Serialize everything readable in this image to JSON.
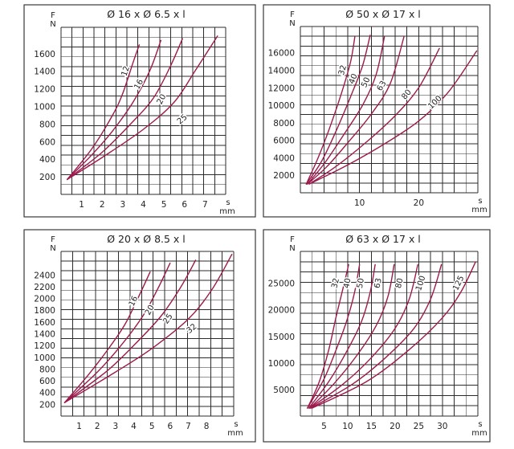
{
  "chart_data": [
    {
      "id": "p1",
      "type": "line",
      "title": "Ø 16 x Ø 6.5 x l",
      "ylabel": "F",
      "yunit": "N",
      "xlabel": "s",
      "xunit": "mm",
      "xlim": [
        0,
        8
      ],
      "ylim": [
        0,
        1900
      ],
      "x_ticks": [
        1,
        2,
        3,
        4,
        5,
        6,
        7
      ],
      "y_ticks": [
        200,
        400,
        600,
        800,
        1000,
        1200,
        1400,
        1600
      ],
      "grid_x_count": 15,
      "grid_y_count": 17,
      "series": [
        {
          "name": "12",
          "points": [
            [
              0.3,
              170
            ],
            [
              1.5,
              520
            ],
            [
              2.5,
              900
            ],
            [
              3.0,
              1150
            ],
            [
              3.5,
              1500
            ],
            [
              3.8,
              1700
            ]
          ],
          "label_at": [
            3.15,
            1400
          ]
        },
        {
          "name": "16",
          "points": [
            [
              0.3,
              170
            ],
            [
              1.5,
              450
            ],
            [
              2.5,
              720
            ],
            [
              3.5,
              1050
            ],
            [
              4.3,
              1400
            ],
            [
              4.85,
              1750
            ]
          ],
          "label_at": [
            3.8,
            1250
          ]
        },
        {
          "name": "20",
          "points": [
            [
              0.3,
              170
            ],
            [
              2.0,
              480
            ],
            [
              3.5,
              830
            ],
            [
              4.5,
              1100
            ],
            [
              5.3,
              1450
            ],
            [
              5.9,
              1770
            ]
          ],
          "label_at": [
            4.9,
            1080
          ]
        },
        {
          "name": "25",
          "points": [
            [
              0.3,
              170
            ],
            [
              2.0,
              420
            ],
            [
              4.0,
              740
            ],
            [
              5.5,
              1050
            ],
            [
              6.5,
              1400
            ],
            [
              7.6,
              1800
            ]
          ],
          "label_at": [
            5.9,
            850
          ]
        }
      ]
    },
    {
      "id": "p2",
      "type": "line",
      "title": "Ø 50 x Ø 17 x l",
      "ylabel": "F",
      "yunit": "N",
      "xlabel": "s",
      "xunit": "mm",
      "xlim": [
        0,
        30
      ],
      "ylim": [
        0,
        19000
      ],
      "x_ticks": [
        10,
        20
      ],
      "y_ticks": [
        2000,
        4000,
        6000,
        8000,
        10000,
        12000,
        14000,
        16000
      ],
      "grid_x_count": 15,
      "grid_y_count": 17,
      "series": [
        {
          "name": "32",
          "points": [
            [
              1.0,
              1000
            ],
            [
              3.0,
              4000
            ],
            [
              5.0,
              7500
            ],
            [
              7.0,
              11500
            ],
            [
              8.5,
              15000
            ],
            [
              9.2,
              17800
            ]
          ],
          "label_at": [
            7.2,
            14000
          ]
        },
        {
          "name": "40",
          "points": [
            [
              1.0,
              1000
            ],
            [
              3.5,
              3500
            ],
            [
              6.0,
              7000
            ],
            [
              8.5,
              11000
            ],
            [
              10.5,
              14500
            ],
            [
              11.8,
              18000
            ]
          ],
          "label_at": [
            9.0,
            13000
          ]
        },
        {
          "name": "50",
          "points": [
            [
              1.2,
              1000
            ],
            [
              4.0,
              3300
            ],
            [
              7.0,
              6300
            ],
            [
              10.5,
              10000
            ],
            [
              12.8,
              13500
            ],
            [
              14.2,
              17800
            ]
          ],
          "label_at": [
            11.1,
            12600
          ]
        },
        {
          "name": "63",
          "points": [
            [
              1.2,
              1000
            ],
            [
              4.5,
              3000
            ],
            [
              8.0,
              5700
            ],
            [
              12.0,
              9000
            ],
            [
              15.2,
              12500
            ],
            [
              17.5,
              17800
            ]
          ],
          "label_at": [
            13.8,
            12200
          ]
        },
        {
          "name": "80",
          "points": [
            [
              1.5,
              1000
            ],
            [
              6.0,
              3000
            ],
            [
              11.0,
              5700
            ],
            [
              16.0,
              8800
            ],
            [
              20.0,
              12000
            ],
            [
              23.5,
              16500
            ]
          ],
          "label_at": [
            18.0,
            11200
          ]
        },
        {
          "name": "100",
          "points": [
            [
              1.5,
              1000
            ],
            [
              7.5,
              3000
            ],
            [
              14.0,
              5500
            ],
            [
              20.0,
              8200
            ],
            [
              25.0,
              11500
            ],
            [
              29.8,
              16200
            ]
          ],
          "label_at": [
            22.8,
            10300
          ]
        }
      ]
    },
    {
      "id": "p3",
      "type": "line",
      "title": "Ø 20 x Ø 8.5 x l",
      "ylabel": "F",
      "yunit": "N",
      "xlabel": "s",
      "xunit": "mm",
      "xlim": [
        0,
        9.5
      ],
      "ylim": [
        0,
        2800
      ],
      "x_ticks": [
        1,
        2,
        3,
        4,
        5,
        6,
        7,
        8
      ],
      "y_ticks": [
        200,
        400,
        600,
        800,
        1000,
        1200,
        1400,
        1600,
        1800,
        2000,
        2200,
        2400
      ],
      "grid_x_count": 15,
      "grid_y_count": 17,
      "series": [
        {
          "name": "16",
          "points": [
            [
              0.2,
              230
            ],
            [
              1.5,
              700
            ],
            [
              2.5,
              1100
            ],
            [
              3.5,
              1550
            ],
            [
              4.3,
              2050
            ],
            [
              4.9,
              2450
            ]
          ],
          "label_at": [
            4.0,
            1950
          ]
        },
        {
          "name": "20",
          "points": [
            [
              0.2,
              230
            ],
            [
              2.0,
              750
            ],
            [
              3.3,
              1200
            ],
            [
              4.5,
              1700
            ],
            [
              5.3,
              2150
            ],
            [
              6.0,
              2600
            ]
          ],
          "label_at": [
            4.9,
            1800
          ]
        },
        {
          "name": "25",
          "points": [
            [
              0.2,
              230
            ],
            [
              2.5,
              760
            ],
            [
              4.0,
              1200
            ],
            [
              5.5,
              1700
            ],
            [
              6.6,
              2200
            ],
            [
              7.4,
              2650
            ]
          ],
          "label_at": [
            5.9,
            1650
          ]
        },
        {
          "name": "32",
          "points": [
            [
              0.2,
              230
            ],
            [
              3.0,
              750
            ],
            [
              5.0,
              1150
            ],
            [
              7.0,
              1650
            ],
            [
              8.3,
              2150
            ],
            [
              9.4,
              2750
            ]
          ],
          "label_at": [
            7.2,
            1480
          ]
        }
      ]
    },
    {
      "id": "p4",
      "type": "line",
      "title": "Ø 63 x Ø 17 x l",
      "ylabel": "F",
      "yunit": "N",
      "xlabel": "s",
      "xunit": "mm",
      "xlim": [
        0,
        37.5
      ],
      "ylim": [
        0,
        31000
      ],
      "x_ticks": [
        5,
        10,
        15,
        20,
        25,
        30
      ],
      "y_ticks": [
        5000,
        10000,
        15000,
        20000,
        25000
      ],
      "grid_x_count": 15,
      "grid_y_count": 16,
      "series": [
        {
          "name": "32",
          "points": [
            [
              1.5,
              1500
            ],
            [
              4.0,
              6500
            ],
            [
              6.0,
              12500
            ],
            [
              7.5,
              18500
            ],
            [
              9.0,
              24000
            ],
            [
              10.2,
              28500
            ]
          ],
          "label_at": [
            7.5,
            25000
          ]
        },
        {
          "name": "40",
          "points": [
            [
              1.5,
              1500
            ],
            [
              5.0,
              7000
            ],
            [
              8.0,
              13500
            ],
            [
              10.0,
              18500
            ],
            [
              11.5,
              23500
            ],
            [
              12.5,
              28500
            ]
          ],
          "label_at": [
            10.0,
            25000
          ]
        },
        {
          "name": "50",
          "points": [
            [
              1.8,
              1500
            ],
            [
              6.0,
              6500
            ],
            [
              10.0,
              12500
            ],
            [
              13.0,
              18000
            ],
            [
              14.8,
              23500
            ],
            [
              15.8,
              28500
            ]
          ],
          "label_at": [
            12.8,
            25000
          ]
        },
        {
          "name": "63",
          "points": [
            [
              2.0,
              1500
            ],
            [
              7.0,
              6000
            ],
            [
              12.0,
              11500
            ],
            [
              16.0,
              17000
            ],
            [
              18.5,
              22500
            ],
            [
              19.8,
              28500
            ]
          ],
          "label_at": [
            16.5,
            25000
          ]
        },
        {
          "name": "80",
          "points": [
            [
              2.0,
              1500
            ],
            [
              9.0,
              6000
            ],
            [
              15.0,
              11000
            ],
            [
              20.0,
              16500
            ],
            [
              23.0,
              22000
            ],
            [
              24.8,
              28500
            ]
          ],
          "label_at": [
            21.0,
            25000
          ]
        },
        {
          "name": "100",
          "points": [
            [
              2.2,
              1500
            ],
            [
              11.0,
              6000
            ],
            [
              18.0,
              11000
            ],
            [
              24.0,
              16500
            ],
            [
              27.5,
              22000
            ],
            [
              29.8,
              28500
            ]
          ],
          "label_at": [
            25.5,
            25000
          ]
        },
        {
          "name": "125",
          "points": [
            [
              2.5,
              1500
            ],
            [
              14.0,
              6500
            ],
            [
              23.0,
              12500
            ],
            [
              30.0,
              18500
            ],
            [
              34.0,
              23500
            ],
            [
              37.0,
              29000
            ]
          ],
          "label_at": [
            33.5,
            25000
          ]
        }
      ]
    }
  ]
}
